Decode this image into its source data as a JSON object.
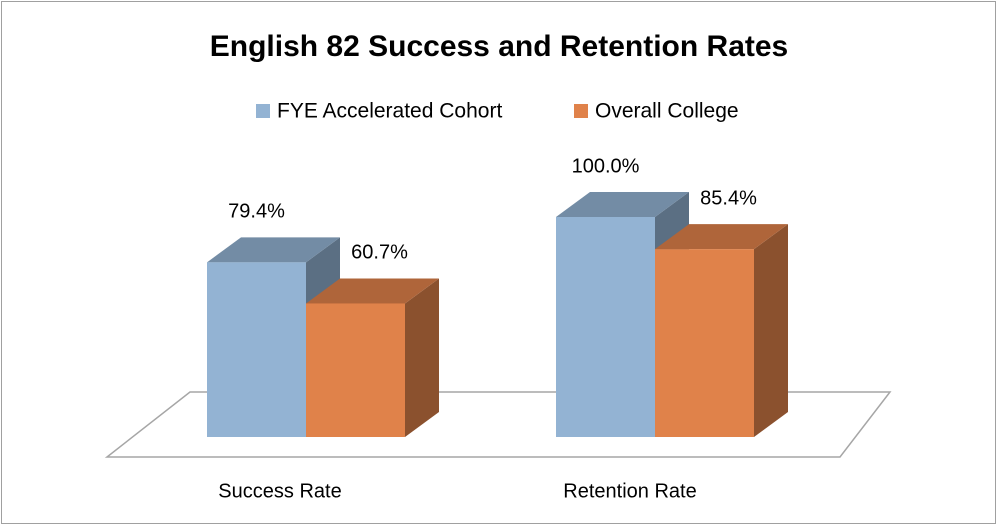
{
  "chart_data": {
    "type": "bar3d",
    "title": "English 82 Success and Retention Rates",
    "categories": [
      "Success Rate",
      "Retention Rate"
    ],
    "series": [
      {
        "name": "FYE Accelerated Cohort",
        "color": "#93b3d3",
        "values": [
          79.4,
          100.0
        ],
        "value_labels": [
          "79.4%",
          "100.0%"
        ]
      },
      {
        "name": "Overall College",
        "color": "#e0824a",
        "values": [
          60.7,
          85.4
        ],
        "value_labels": [
          "60.7%",
          "85.4%"
        ]
      }
    ],
    "legend": "top"
  }
}
